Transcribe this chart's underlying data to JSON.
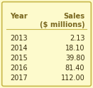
{
  "title_col1": "Year",
  "title_col2": "Sales\n($ millions)",
  "years": [
    "2013",
    "2014",
    "2015",
    "2016",
    "2017"
  ],
  "sales": [
    "2.13",
    "18.10",
    "39.80",
    "81.40",
    "112.00"
  ],
  "background_color": "#FDFACC",
  "border_color": "#C8B84A",
  "header_color": "#7A6820",
  "data_color": "#3A3010",
  "divider_color": "#C8B84A",
  "header_fontsize": 7.2,
  "data_fontsize": 7.0
}
